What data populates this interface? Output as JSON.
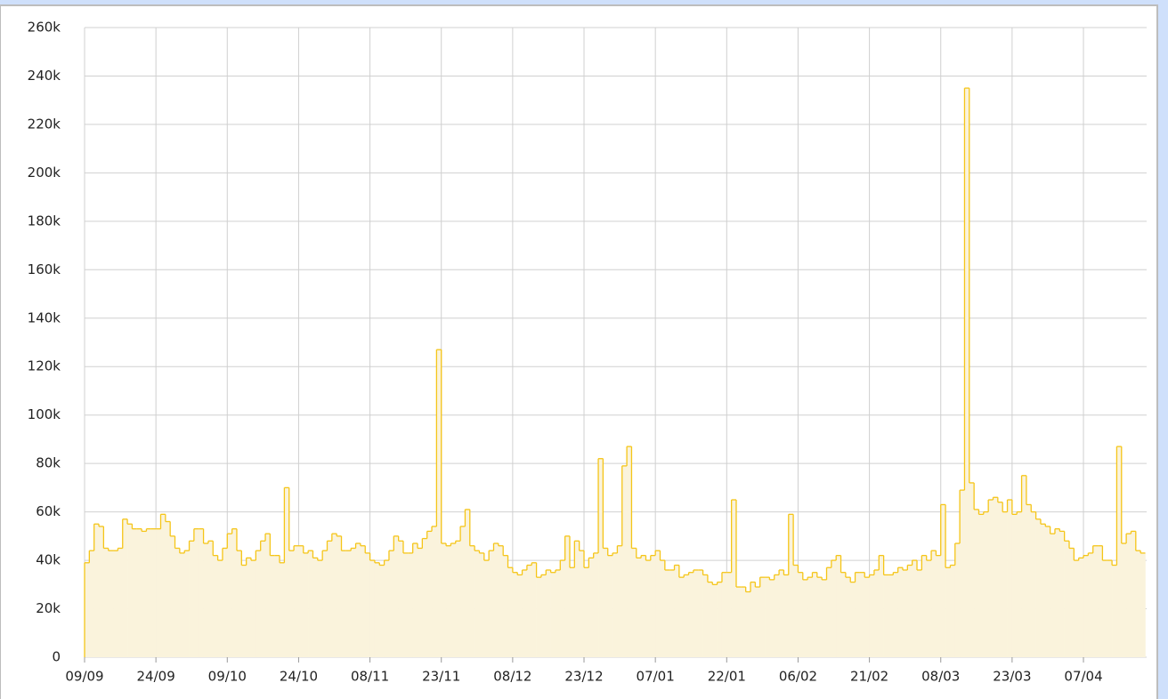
{
  "chart_data": {
    "type": "step-area",
    "color": "#f5c518",
    "fill": "#faf3dc",
    "grid": true,
    "ylim": [
      0,
      260000
    ],
    "yticks": [
      0,
      {
        "value": 20000,
        "label": "20k"
      },
      {
        "value": 40000,
        "label": "40k"
      },
      {
        "value": 60000,
        "label": "60k"
      },
      {
        "value": 80000,
        "label": "80k"
      },
      {
        "value": 100000,
        "label": "100k"
      },
      {
        "value": 120000,
        "label": "120k"
      },
      {
        "value": 140000,
        "label": "140k"
      },
      {
        "value": 160000,
        "label": "160k"
      },
      {
        "value": 180000,
        "label": "180k"
      },
      {
        "value": 200000,
        "label": "200k"
      },
      {
        "value": 220000,
        "label": "220k"
      },
      {
        "value": 240000,
        "label": "240k"
      },
      {
        "value": 260000,
        "label": "260k"
      }
    ],
    "categories": [
      "09/09",
      null,
      null,
      null,
      null,
      null,
      null,
      null,
      null,
      null,
      null,
      null,
      null,
      null,
      null,
      "24/09",
      null,
      null,
      null,
      null,
      null,
      null,
      null,
      null,
      null,
      null,
      null,
      null,
      null,
      null,
      "09/10",
      null,
      null,
      null,
      null,
      null,
      null,
      null,
      null,
      null,
      null,
      null,
      null,
      null,
      null,
      "24/10",
      null,
      null,
      null,
      null,
      null,
      null,
      null,
      null,
      null,
      null,
      null,
      null,
      null,
      null,
      "08/11",
      null,
      null,
      null,
      null,
      null,
      null,
      null,
      null,
      null,
      null,
      null,
      null,
      null,
      null,
      "23/11",
      null,
      null,
      null,
      null,
      null,
      null,
      null,
      null,
      null,
      null,
      null,
      null,
      null,
      null,
      "08/12",
      null,
      null,
      null,
      null,
      null,
      null,
      null,
      null,
      null,
      null,
      null,
      null,
      null,
      null,
      "23/12",
      null,
      null,
      null,
      null,
      null,
      null,
      null,
      null,
      null,
      null,
      null,
      null,
      null,
      null,
      "07/01",
      null,
      null,
      null,
      null,
      null,
      null,
      null,
      null,
      null,
      null,
      null,
      null,
      null,
      null,
      "22/01",
      null,
      null,
      null,
      null,
      null,
      null,
      null,
      null,
      null,
      null,
      null,
      null,
      null,
      null,
      "06/02",
      null,
      null,
      null,
      null,
      null,
      null,
      null,
      null,
      null,
      null,
      null,
      null,
      null,
      null,
      "21/02",
      null,
      null,
      null,
      null,
      null,
      null,
      null,
      null,
      null,
      null,
      null,
      null,
      null,
      null,
      "08/03",
      null,
      null,
      null,
      null,
      null,
      null,
      null,
      null,
      null,
      null,
      null,
      null,
      null,
      null,
      "23/03",
      null,
      null,
      null,
      null,
      null,
      null,
      null,
      null,
      null,
      null,
      null,
      null,
      null,
      null,
      "07/04",
      null,
      null,
      null,
      null,
      null,
      null,
      null,
      null,
      null,
      null,
      null,
      null
    ],
    "values": [
      39000,
      44000,
      55000,
      54000,
      45000,
      44000,
      44000,
      45000,
      57000,
      55000,
      53000,
      53000,
      52000,
      53000,
      53000,
      53000,
      59000,
      56000,
      50000,
      45000,
      43000,
      44000,
      48000,
      53000,
      53000,
      47000,
      48000,
      42000,
      40000,
      45000,
      51000,
      53000,
      44000,
      38000,
      41000,
      40000,
      44000,
      48000,
      51000,
      42000,
      42000,
      39000,
      70000,
      44000,
      46000,
      46000,
      43000,
      44000,
      41000,
      40000,
      44000,
      48000,
      51000,
      50000,
      44000,
      44000,
      45000,
      47000,
      46000,
      43000,
      40000,
      39000,
      38000,
      40000,
      44000,
      50000,
      48000,
      43000,
      43000,
      47000,
      45000,
      49000,
      52000,
      54000,
      127000,
      47000,
      46000,
      47000,
      48000,
      54000,
      61000,
      46000,
      44000,
      43000,
      40000,
      44000,
      47000,
      46000,
      42000,
      37000,
      35000,
      34000,
      36000,
      38000,
      39000,
      33000,
      34000,
      36000,
      35000,
      36000,
      40000,
      50000,
      37000,
      48000,
      44000,
      37000,
      41000,
      43000,
      82000,
      45000,
      42000,
      43000,
      46000,
      79000,
      87000,
      45000,
      41000,
      42000,
      40000,
      42000,
      44000,
      40000,
      36000,
      36000,
      38000,
      33000,
      34000,
      35000,
      36000,
      36000,
      34000,
      31000,
      30000,
      31000,
      35000,
      35000,
      65000,
      29000,
      29000,
      27000,
      31000,
      29000,
      33000,
      33000,
      32000,
      34000,
      36000,
      34000,
      59000,
      38000,
      35000,
      32000,
      33000,
      35000,
      33000,
      32000,
      37000,
      40000,
      42000,
      35000,
      33000,
      31000,
      35000,
      35000,
      33000,
      34000,
      36000,
      42000,
      34000,
      34000,
      35000,
      37000,
      36000,
      38000,
      40000,
      36000,
      42000,
      40000,
      44000,
      42000,
      63000,
      37000,
      38000,
      47000,
      69000,
      235000,
      72000,
      61000,
      59000,
      60000,
      65000,
      66000,
      64000,
      60000,
      65000,
      59000,
      60000,
      75000,
      63000,
      60000,
      57000,
      55000,
      54000,
      51000,
      53000,
      52000,
      48000,
      45000,
      40000,
      41000,
      42000,
      43000,
      46000,
      46000,
      40000,
      40000,
      38000,
      87000,
      47000,
      51000,
      52000,
      44000,
      43000
    ]
  }
}
